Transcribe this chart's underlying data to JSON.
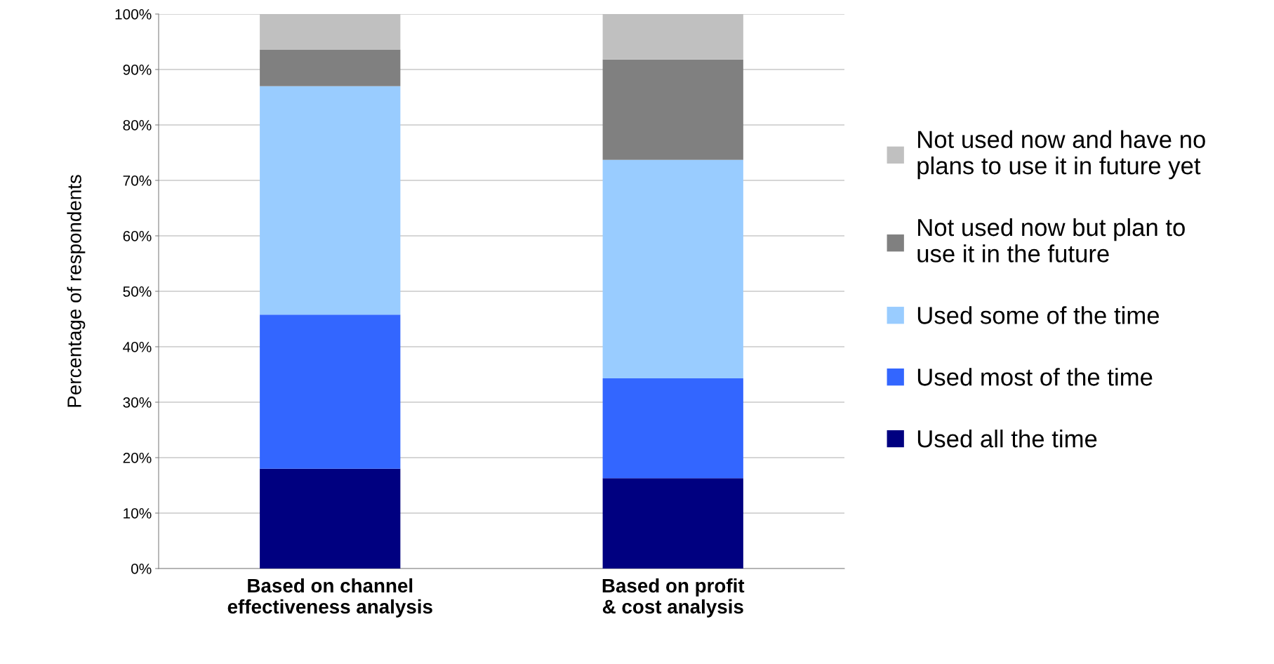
{
  "chart_data": {
    "type": "bar",
    "stacked": true,
    "ylabel": "Percentage of respondents",
    "categories": [
      "Based on channel\neffectiveness analysis",
      "Based on profit\n& cost analysis"
    ],
    "series": [
      {
        "name": "Used all the time",
        "color": "#000080",
        "values": [
          18.0,
          16.3
        ]
      },
      {
        "name": "Used most of the time",
        "color": "#3366ff",
        "values": [
          27.8,
          18.0
        ]
      },
      {
        "name": "Used some of the time",
        "color": "#99ccff",
        "values": [
          41.2,
          39.4
        ]
      },
      {
        "name": "Not used now but plan to\nuse it in the future",
        "color": "#808080",
        "values": [
          6.6,
          18.1
        ]
      },
      {
        "name": "Not used now and have no\nplans to use it in future yet",
        "color": "#c0c0c0",
        "values": [
          6.4,
          8.2
        ]
      }
    ],
    "ylim": [
      0,
      100
    ],
    "yticks": [
      {
        "value": 0,
        "label": "0%"
      },
      {
        "value": 10,
        "label": "10%"
      },
      {
        "value": 20,
        "label": "20%"
      },
      {
        "value": 30,
        "label": "30%"
      },
      {
        "value": 40,
        "label": "40%"
      },
      {
        "value": 50,
        "label": "50%"
      },
      {
        "value": 60,
        "label": "60%"
      },
      {
        "value": 70,
        "label": "70%"
      },
      {
        "value": 80,
        "label": "80%"
      },
      {
        "value": 90,
        "label": "90%"
      },
      {
        "value": 100,
        "label": "100%"
      }
    ],
    "grid": "y",
    "legend": "right"
  }
}
